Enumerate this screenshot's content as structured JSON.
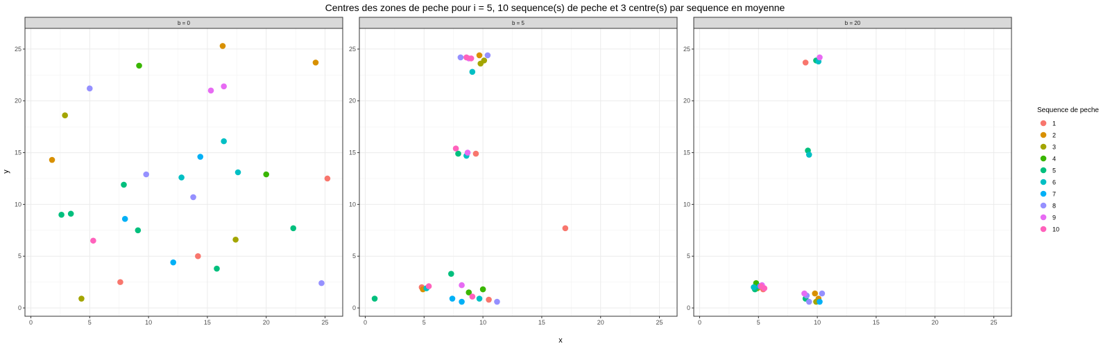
{
  "chart_data": {
    "type": "scatter",
    "title": "Centres des zones de peche pour i = 5, 10 sequence(s) de peche et 3 centre(s) par sequence en moyenne",
    "xlabel": "x",
    "ylabel": "y",
    "xlim": [
      -0.5,
      26.5
    ],
    "ylim": [
      -0.8,
      27
    ],
    "x_ticks": [
      0,
      5,
      10,
      15,
      20,
      25
    ],
    "y_ticks": [
      0,
      5,
      10,
      15,
      20,
      25
    ],
    "x_tick_labels": [
      "0",
      "5",
      "10",
      "15",
      "20",
      "25"
    ],
    "y_tick_labels": [
      "0",
      "5",
      "10",
      "15",
      "20",
      "25"
    ],
    "grid": true,
    "legend": {
      "title": "Sequence de peche",
      "placement": "right",
      "entries": [
        {
          "label": "1",
          "color": "#F8766D"
        },
        {
          "label": "2",
          "color": "#D89000"
        },
        {
          "label": "3",
          "color": "#A3A500"
        },
        {
          "label": "4",
          "color": "#39B600"
        },
        {
          "label": "5",
          "color": "#00BF7D"
        },
        {
          "label": "6",
          "color": "#00BFC4"
        },
        {
          "label": "7",
          "color": "#00B0F6"
        },
        {
          "label": "8",
          "color": "#9590FF"
        },
        {
          "label": "9",
          "color": "#E76BF3"
        },
        {
          "label": "10",
          "color": "#FF62BC"
        }
      ]
    },
    "panels": [
      {
        "label": "b = 0",
        "points": [
          {
            "s": 1,
            "x": 25.2,
            "y": 12.5
          },
          {
            "s": 1,
            "x": 14.2,
            "y": 5.0
          },
          {
            "s": 1,
            "x": 7.6,
            "y": 2.5
          },
          {
            "s": 2,
            "x": 16.3,
            "y": 25.3
          },
          {
            "s": 2,
            "x": 24.2,
            "y": 23.7
          },
          {
            "s": 2,
            "x": 1.8,
            "y": 14.3
          },
          {
            "s": 3,
            "x": 2.9,
            "y": 18.6
          },
          {
            "s": 3,
            "x": 17.4,
            "y": 6.6
          },
          {
            "s": 3,
            "x": 4.3,
            "y": 0.9
          },
          {
            "s": 4,
            "x": 9.2,
            "y": 23.4
          },
          {
            "s": 4,
            "x": 20.0,
            "y": 12.9
          },
          {
            "s": 5,
            "x": 7.9,
            "y": 11.9
          },
          {
            "s": 5,
            "x": 2.6,
            "y": 9.0
          },
          {
            "s": 5,
            "x": 3.4,
            "y": 9.1
          },
          {
            "s": 5,
            "x": 9.1,
            "y": 7.5
          },
          {
            "s": 5,
            "x": 22.3,
            "y": 7.7
          },
          {
            "s": 5,
            "x": 15.8,
            "y": 3.8
          },
          {
            "s": 6,
            "x": 16.4,
            "y": 16.1
          },
          {
            "s": 6,
            "x": 17.6,
            "y": 13.1
          },
          {
            "s": 6,
            "x": 12.8,
            "y": 12.6
          },
          {
            "s": 7,
            "x": 14.4,
            "y": 14.6
          },
          {
            "s": 7,
            "x": 8.0,
            "y": 8.6
          },
          {
            "s": 7,
            "x": 12.1,
            "y": 4.4
          },
          {
            "s": 8,
            "x": 5.0,
            "y": 21.2
          },
          {
            "s": 8,
            "x": 9.8,
            "y": 12.9
          },
          {
            "s": 8,
            "x": 13.8,
            "y": 10.7
          },
          {
            "s": 8,
            "x": 24.7,
            "y": 2.4
          },
          {
            "s": 9,
            "x": 15.3,
            "y": 21.0
          },
          {
            "s": 9,
            "x": 16.4,
            "y": 21.4
          },
          {
            "s": 10,
            "x": 5.3,
            "y": 6.5
          }
        ]
      },
      {
        "label": "b = 5",
        "points": [
          {
            "s": 1,
            "x": 9.4,
            "y": 14.9
          },
          {
            "s": 1,
            "x": 17.0,
            "y": 7.7
          },
          {
            "s": 1,
            "x": 4.8,
            "y": 2.0
          },
          {
            "s": 1,
            "x": 10.5,
            "y": 0.8
          },
          {
            "s": 2,
            "x": 9.7,
            "y": 24.4
          },
          {
            "s": 2,
            "x": 4.9,
            "y": 1.8
          },
          {
            "s": 3,
            "x": 9.8,
            "y": 23.6
          },
          {
            "s": 3,
            "x": 10.1,
            "y": 23.9
          },
          {
            "s": 4,
            "x": 8.8,
            "y": 1.5
          },
          {
            "s": 4,
            "x": 10.0,
            "y": 1.8
          },
          {
            "s": 5,
            "x": 7.9,
            "y": 14.9
          },
          {
            "s": 5,
            "x": 0.8,
            "y": 0.9
          },
          {
            "s": 5,
            "x": 7.3,
            "y": 3.3
          },
          {
            "s": 6,
            "x": 9.1,
            "y": 22.8
          },
          {
            "s": 6,
            "x": 8.6,
            "y": 14.7
          },
          {
            "s": 6,
            "x": 5.2,
            "y": 1.9
          },
          {
            "s": 6,
            "x": 9.7,
            "y": 0.9
          },
          {
            "s": 7,
            "x": 7.4,
            "y": 0.9
          },
          {
            "s": 7,
            "x": 8.2,
            "y": 0.6
          },
          {
            "s": 8,
            "x": 8.1,
            "y": 24.2
          },
          {
            "s": 8,
            "x": 10.4,
            "y": 24.4
          },
          {
            "s": 8,
            "x": 11.2,
            "y": 0.6
          },
          {
            "s": 9,
            "x": 8.7,
            "y": 15.0
          },
          {
            "s": 9,
            "x": 8.2,
            "y": 2.2
          },
          {
            "s": 9,
            "x": 8.8,
            "y": 24.1
          },
          {
            "s": 10,
            "x": 8.6,
            "y": 24.2
          },
          {
            "s": 10,
            "x": 9.0,
            "y": 24.1
          },
          {
            "s": 10,
            "x": 7.7,
            "y": 15.4
          },
          {
            "s": 10,
            "x": 5.4,
            "y": 2.1
          },
          {
            "s": 10,
            "x": 9.1,
            "y": 1.1
          }
        ]
      },
      {
        "label": "b = 20",
        "points": [
          {
            "s": 1,
            "x": 9.0,
            "y": 23.7
          },
          {
            "s": 1,
            "x": 5.0,
            "y": 2.0
          },
          {
            "s": 1,
            "x": 5.4,
            "y": 1.8
          },
          {
            "s": 2,
            "x": 9.8,
            "y": 1.4
          },
          {
            "s": 2,
            "x": 10.1,
            "y": 0.9
          },
          {
            "s": 3,
            "x": 4.9,
            "y": 1.9
          },
          {
            "s": 3,
            "x": 9.9,
            "y": 0.6
          },
          {
            "s": 4,
            "x": 4.8,
            "y": 2.4
          },
          {
            "s": 5,
            "x": 9.2,
            "y": 15.2
          },
          {
            "s": 5,
            "x": 9.9,
            "y": 23.9
          },
          {
            "s": 5,
            "x": 4.7,
            "y": 1.8
          },
          {
            "s": 5,
            "x": 9.0,
            "y": 0.9
          },
          {
            "s": 6,
            "x": 9.3,
            "y": 14.8
          },
          {
            "s": 6,
            "x": 10.1,
            "y": 23.8
          },
          {
            "s": 6,
            "x": 4.6,
            "y": 2.0
          },
          {
            "s": 7,
            "x": 10.2,
            "y": 0.6
          },
          {
            "s": 7,
            "x": 5.1,
            "y": 2.1
          },
          {
            "s": 8,
            "x": 9.3,
            "y": 0.6
          },
          {
            "s": 8,
            "x": 10.4,
            "y": 1.4
          },
          {
            "s": 8,
            "x": 9.1,
            "y": 1.2
          },
          {
            "s": 9,
            "x": 10.2,
            "y": 24.2
          },
          {
            "s": 9,
            "x": 8.9,
            "y": 1.4
          },
          {
            "s": 9,
            "x": 5.3,
            "y": 2.2
          },
          {
            "s": 10,
            "x": 5.5,
            "y": 1.9
          },
          {
            "s": 10,
            "x": 5.2,
            "y": 2.1
          }
        ]
      }
    ]
  }
}
